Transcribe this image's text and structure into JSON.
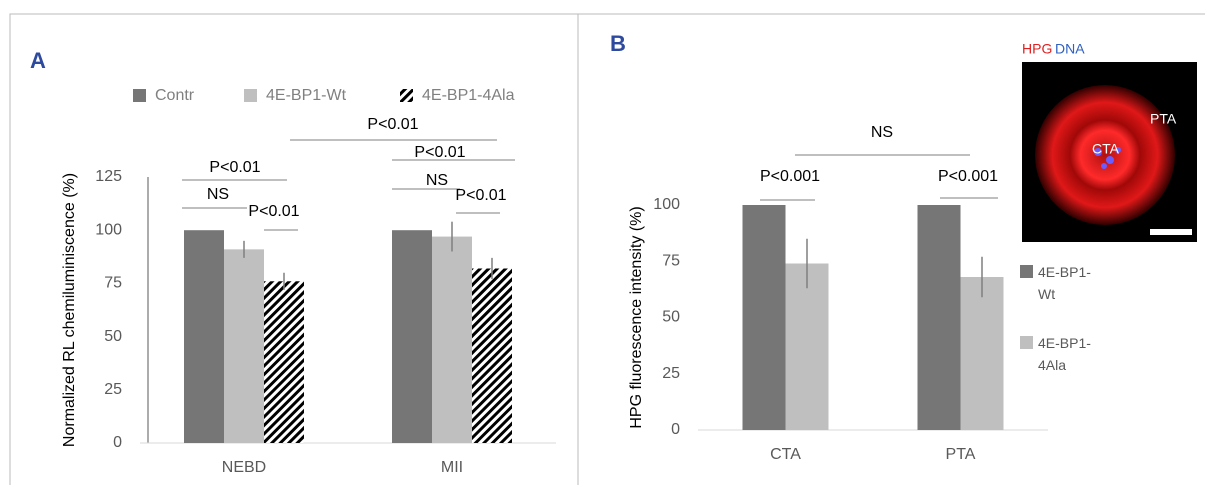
{
  "chart_data": [
    {
      "type": "bar",
      "panel": "A",
      "y_label": "Normalized RL chemiluminiscence  (%)",
      "categories": [
        "NEBD",
        "MII"
      ],
      "series": [
        {
          "name": "Contr",
          "color": "#767676",
          "values": [
            100,
            100
          ]
        },
        {
          "name": "4E-BP1-Wt",
          "color": "#bfbfbf",
          "values": [
            91,
            97
          ],
          "errors": [
            4,
            7
          ]
        },
        {
          "name": "4E-BP1-4Ala",
          "color": "#000000",
          "hatch": true,
          "values": [
            76,
            82
          ],
          "errors": [
            4,
            5
          ]
        }
      ],
      "ylim": [
        0,
        125
      ],
      "yticks": [
        0,
        25,
        50,
        75,
        100,
        125
      ],
      "legend": "top",
      "annotations": [
        "P<0.01",
        "NS",
        "P<0.01",
        "P<0.01",
        "P<0.01",
        "NS",
        "P<0.01"
      ]
    },
    {
      "type": "bar",
      "panel": "B",
      "y_label": "HPG fluorescence intensity (%)",
      "categories": [
        "CTA",
        "PTA"
      ],
      "series": [
        {
          "name": "4E-BP1-Wt",
          "color": "#767676",
          "values": [
            100,
            100
          ]
        },
        {
          "name": "4E-BP1-4Ala",
          "color": "#bfbfbf",
          "values": [
            74,
            68
          ],
          "errors": [
            11,
            9
          ]
        }
      ],
      "ylim": [
        0,
        100
      ],
      "yticks": [
        0,
        25,
        50,
        75,
        100
      ],
      "legend": "right",
      "annotations": [
        "P<0.001",
        "P<0.001",
        "NS"
      ]
    }
  ],
  "inset": {
    "channels": [
      "HPG",
      "DNA"
    ],
    "regions": [
      "PTA",
      "CTA"
    ]
  }
}
